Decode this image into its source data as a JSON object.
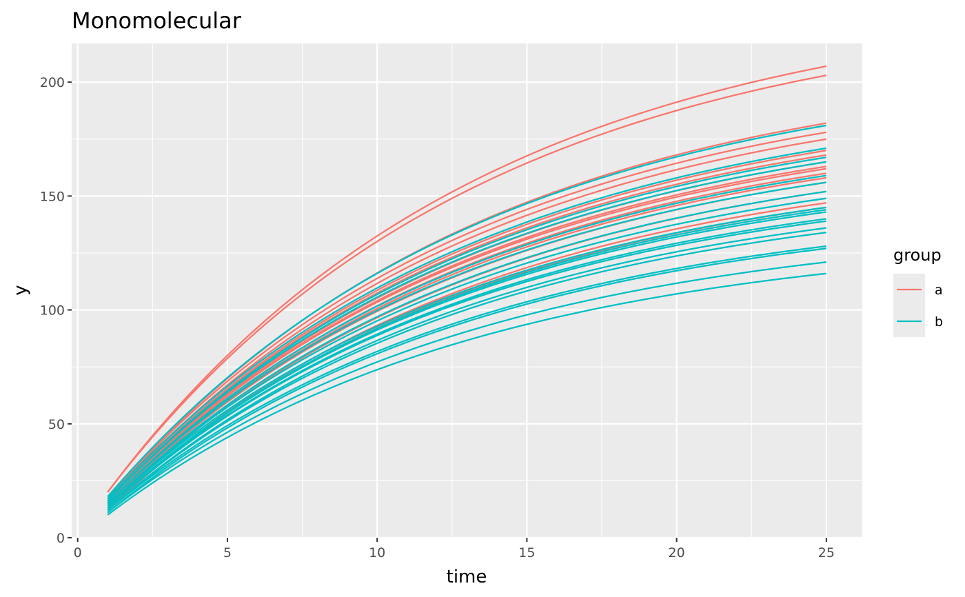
{
  "chart_data": {
    "type": "line",
    "title": "Monomolecular",
    "xlabel": "time",
    "ylabel": "y",
    "xlim": [
      -0.2,
      26.2
    ],
    "ylim": [
      0,
      217
    ],
    "x_ticks": [
      0,
      5,
      10,
      15,
      20,
      25
    ],
    "x_tick_labels": [
      "0",
      "5",
      "10",
      "15",
      "20",
      "25"
    ],
    "y_ticks": [
      0,
      50,
      100,
      150,
      200
    ],
    "y_tick_labels": [
      "0",
      "50",
      "100",
      "150",
      "200"
    ],
    "grid": true,
    "legend": {
      "title": "group",
      "position": "right",
      "entries": [
        {
          "label": "a",
          "color": "#F8766D"
        },
        {
          "label": "b",
          "color": "#00BFC4"
        }
      ]
    },
    "x": [
      1,
      25
    ],
    "colors": {
      "a": "#F8766D",
      "b": "#00BFC4"
    },
    "series": [
      {
        "group": "a",
        "values": [
          20,
          207
        ]
      },
      {
        "group": "a",
        "values": [
          20,
          203
        ]
      },
      {
        "group": "a",
        "values": [
          17,
          182
        ]
      },
      {
        "group": "a",
        "values": [
          17,
          178
        ]
      },
      {
        "group": "a",
        "values": [
          16,
          175
        ]
      },
      {
        "group": "a",
        "values": [
          16,
          170
        ]
      },
      {
        "group": "a",
        "values": [
          16,
          168
        ]
      },
      {
        "group": "a",
        "values": [
          15,
          165
        ]
      },
      {
        "group": "a",
        "values": [
          15,
          163
        ]
      },
      {
        "group": "a",
        "values": [
          15,
          162
        ]
      },
      {
        "group": "a",
        "values": [
          14,
          160
        ]
      },
      {
        "group": "a",
        "values": [
          14,
          158
        ]
      },
      {
        "group": "a",
        "values": [
          14,
          156
        ]
      },
      {
        "group": "a",
        "values": [
          13,
          152
        ]
      },
      {
        "group": "a",
        "values": [
          12,
          147
        ]
      },
      {
        "group": "a",
        "values": [
          12,
          145
        ]
      },
      {
        "group": "b",
        "values": [
          18,
          181
        ]
      },
      {
        "group": "b",
        "values": [
          17,
          171
        ]
      },
      {
        "group": "b",
        "values": [
          16,
          167
        ]
      },
      {
        "group": "b",
        "values": [
          16,
          165
        ]
      },
      {
        "group": "b",
        "values": [
          15,
          159
        ]
      },
      {
        "group": "b",
        "values": [
          15,
          156
        ]
      },
      {
        "group": "b",
        "values": [
          14,
          152
        ]
      },
      {
        "group": "b",
        "values": [
          14,
          149
        ]
      },
      {
        "group": "b",
        "values": [
          14,
          145
        ]
      },
      {
        "group": "b",
        "values": [
          13,
          144
        ]
      },
      {
        "group": "b",
        "values": [
          13,
          143
        ]
      },
      {
        "group": "b",
        "values": [
          13,
          140
        ]
      },
      {
        "group": "b",
        "values": [
          13,
          139
        ]
      },
      {
        "group": "b",
        "values": [
          12,
          136
        ]
      },
      {
        "group": "b",
        "values": [
          12,
          134
        ]
      },
      {
        "group": "b",
        "values": [
          12,
          128
        ]
      },
      {
        "group": "b",
        "values": [
          11,
          127
        ]
      },
      {
        "group": "b",
        "values": [
          11,
          121
        ]
      },
      {
        "group": "b",
        "values": [
          10,
          116
        ]
      }
    ]
  }
}
